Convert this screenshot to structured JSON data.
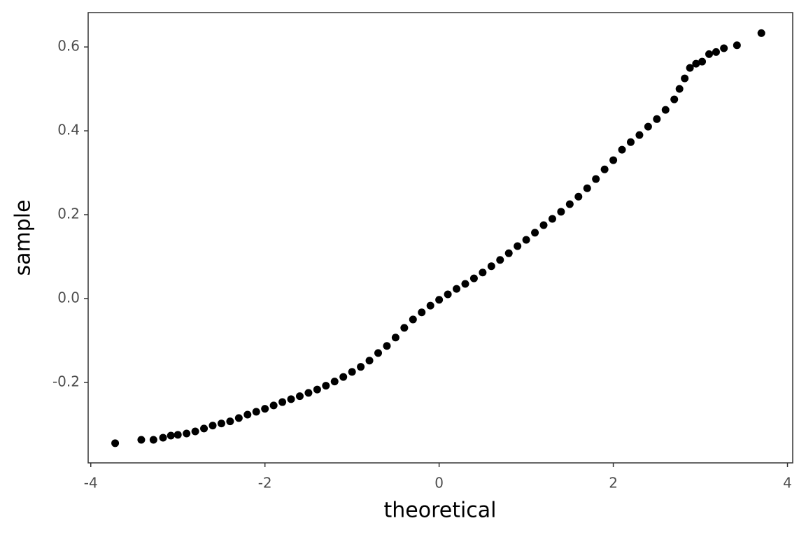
{
  "chart_data": {
    "type": "scatter",
    "x_label": "theoretical",
    "y_label": "sample",
    "color": "#000000",
    "x": [
      -3.72,
      -3.42,
      -3.28,
      -3.17,
      -3.08,
      -3.0,
      -2.9,
      -2.8,
      -2.7,
      -2.6,
      -2.5,
      -2.4,
      -2.3,
      -2.2,
      -2.1,
      -2.0,
      -1.9,
      -1.8,
      -1.7,
      -1.6,
      -1.5,
      -1.4,
      -1.3,
      -1.2,
      -1.1,
      -1.0,
      -0.9,
      -0.8,
      -0.7,
      -0.6,
      -0.5,
      -0.4,
      -0.3,
      -0.2,
      -0.1,
      0,
      0.1,
      0.2,
      0.3,
      0.4,
      0.5,
      0.6,
      0.7,
      0.8,
      0.9,
      1.0,
      1.1,
      1.2,
      1.3,
      1.4,
      1.5,
      1.6,
      1.7,
      1.8,
      1.9,
      2.0,
      2.1,
      2.2,
      2.3,
      2.4,
      2.5,
      2.6,
      2.7,
      2.76,
      2.82,
      2.88,
      2.95,
      3.02,
      3.1,
      3.18,
      3.27,
      3.42,
      3.7
    ],
    "y": [
      -0.345,
      -0.337,
      -0.337,
      -0.332,
      -0.327,
      -0.325,
      -0.322,
      -0.317,
      -0.31,
      -0.303,
      -0.298,
      -0.293,
      -0.285,
      -0.277,
      -0.27,
      -0.263,
      -0.255,
      -0.247,
      -0.24,
      -0.233,
      -0.225,
      -0.217,
      -0.208,
      -0.198,
      -0.187,
      -0.175,
      -0.163,
      -0.148,
      -0.13,
      -0.113,
      -0.093,
      -0.07,
      -0.05,
      -0.033,
      -0.017,
      -0.003,
      0.01,
      0.023,
      0.035,
      0.048,
      0.062,
      0.077,
      0.092,
      0.108,
      0.125,
      0.14,
      0.157,
      0.175,
      0.19,
      0.207,
      0.225,
      0.243,
      0.263,
      0.285,
      0.308,
      0.33,
      0.355,
      0.373,
      0.39,
      0.41,
      0.428,
      0.45,
      0.475,
      0.5,
      0.525,
      0.55,
      0.56,
      0.565,
      0.583,
      0.588,
      0.597,
      0.604,
      0.633
    ],
    "xlim": [
      -4.03,
      4.06
    ],
    "ylim": [
      -0.392,
      0.682
    ],
    "xticks": [
      -4,
      -2,
      0,
      2,
      4
    ],
    "yticks": [
      -0.2,
      {
        "value": 0,
        "label": "0.0"
      },
      0.2,
      0.4,
      0.6
    ]
  }
}
